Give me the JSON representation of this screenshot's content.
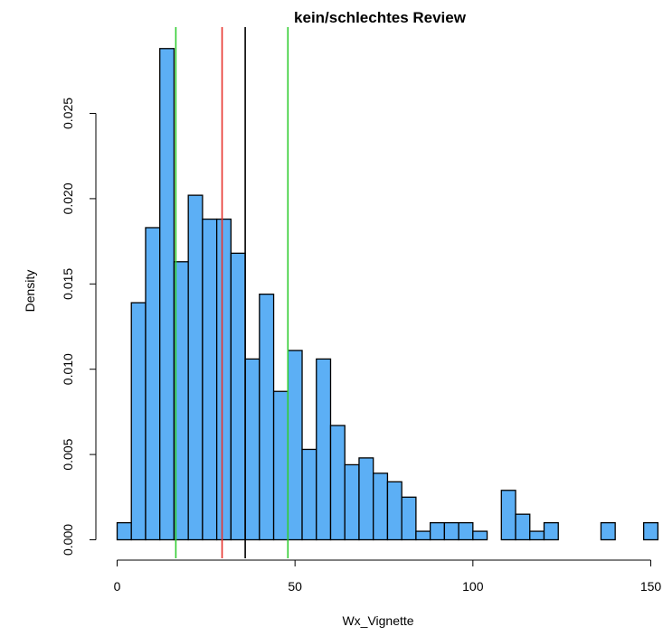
{
  "chart_data": {
    "type": "bar",
    "title": "kein/schlechtes Review",
    "xlabel": "Wx_Vignette",
    "ylabel": "Density",
    "bin_width": 4,
    "bin_start": 0,
    "xlim": [
      0,
      152
    ],
    "ylim": [
      0,
      0.029
    ],
    "x_ticks": [
      0,
      50,
      100,
      150
    ],
    "x_tick_labels": [
      "0",
      "50",
      "100",
      "150"
    ],
    "y_ticks": [
      0,
      0.005,
      0.01,
      0.015,
      0.02,
      0.025
    ],
    "y_tick_labels": [
      "0.000",
      "0.005",
      "0.010",
      "0.015",
      "0.020",
      "0.025"
    ],
    "bar_color": "#5caff5",
    "values": [
      0.001,
      0.0139,
      0.0183,
      0.0288,
      0.0163,
      0.0202,
      0.0188,
      0.0188,
      0.0168,
      0.0106,
      0.0144,
      0.0087,
      0.0111,
      0.0053,
      0.0106,
      0.0067,
      0.0044,
      0.0048,
      0.0039,
      0.0034,
      0.0025,
      0.0005,
      0.001,
      0.001,
      0.001,
      0.0005,
      0.0,
      0.0029,
      0.0015,
      0.0005,
      0.001,
      0.0,
      0.0,
      0.0,
      0.001,
      0.0,
      0.0,
      0.001
    ],
    "vlines": [
      {
        "x": 16.5,
        "color": "#32cd32"
      },
      {
        "x": 29.5,
        "color": "#e8322b"
      },
      {
        "x": 36.0,
        "color": "#000000"
      },
      {
        "x": 48.0,
        "color": "#32cd32"
      }
    ]
  }
}
